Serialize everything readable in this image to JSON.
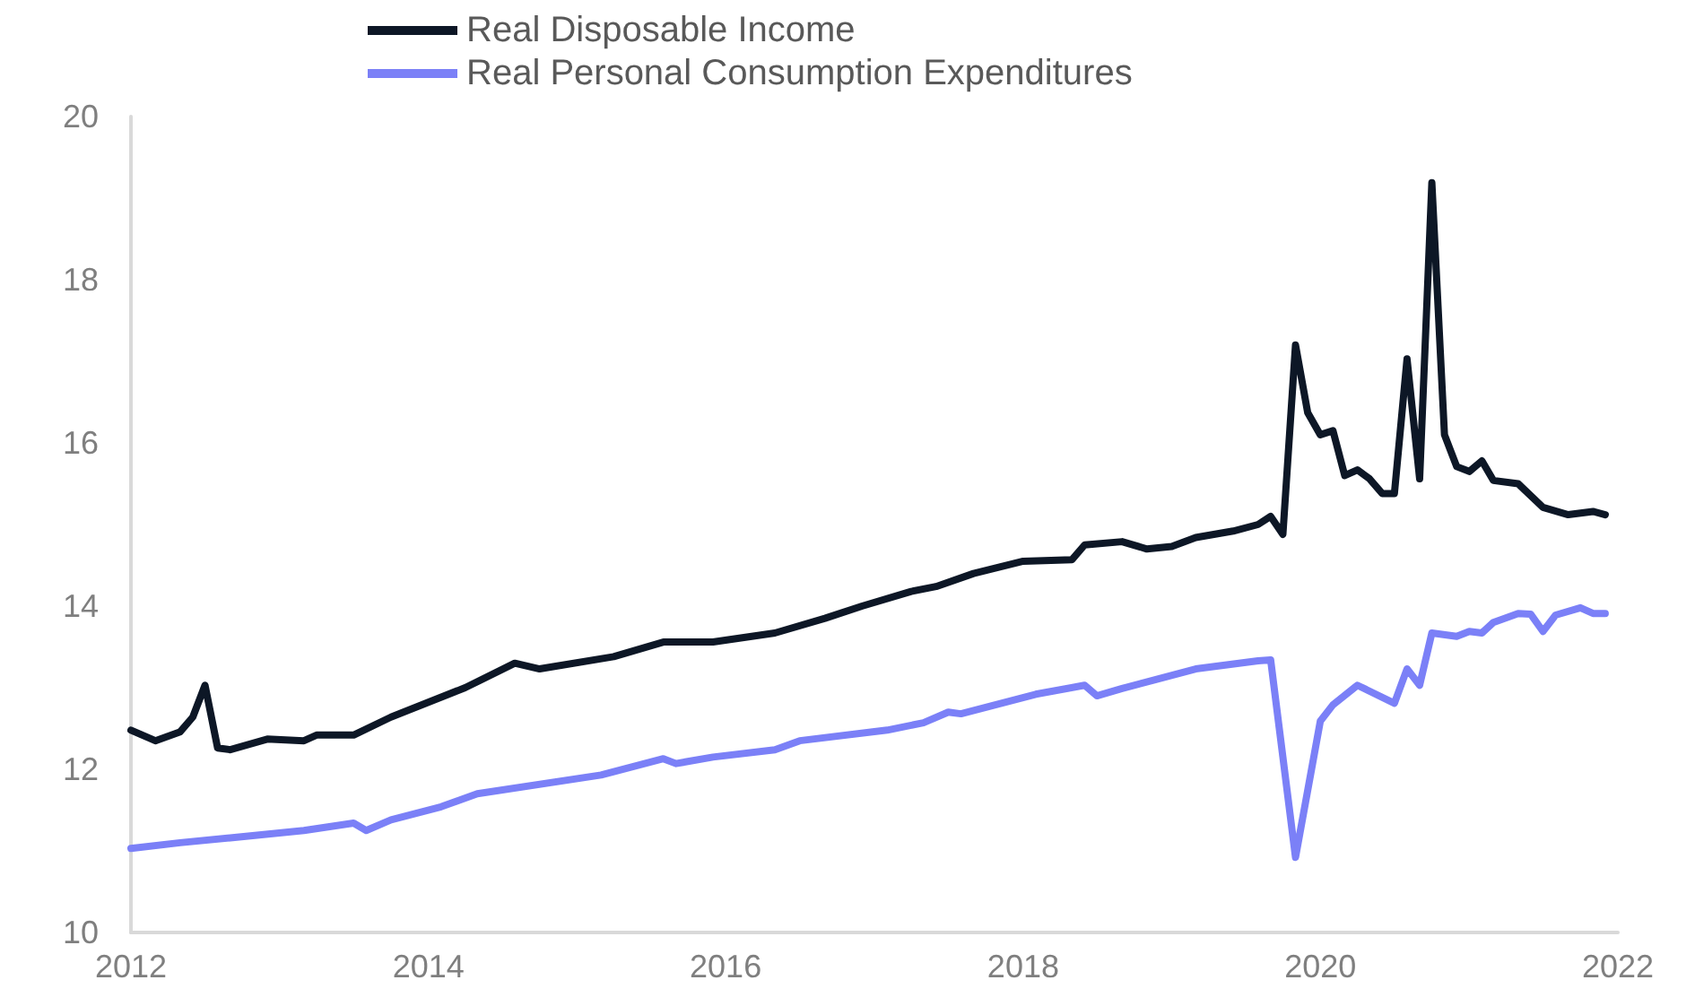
{
  "chart_data": {
    "type": "line",
    "series": [
      {
        "name": "Real Disposable Income",
        "color": "#0d1726",
        "x": [
          "2012-01",
          "2012-03",
          "2012-05",
          "2012-06",
          "2012-07",
          "2012-08",
          "2012-09",
          "2012-12",
          "2013-03",
          "2013-04",
          "2013-07",
          "2013-10",
          "2014-04",
          "2014-08",
          "2014-10",
          "2015-04",
          "2015-08",
          "2015-12",
          "2016-05",
          "2016-09",
          "2016-12",
          "2017-04",
          "2017-06",
          "2017-09",
          "2018-01",
          "2018-05",
          "2018-06",
          "2018-09",
          "2018-11",
          "2019-01",
          "2019-03",
          "2019-06",
          "2019-08",
          "2019-09",
          "2019-10",
          "2019-11",
          "2019-12",
          "2020-01",
          "2020-02",
          "2020-03",
          "2020-04",
          "2020-05",
          "2020-06",
          "2020-07",
          "2020-08",
          "2020-09",
          "2020-10",
          "2020-11",
          "2020-12",
          "2021-01",
          "2021-02",
          "2021-03",
          "2021-05",
          "2021-07",
          "2021-09",
          "2021-11",
          "2021-12"
        ],
        "values": [
          12.48,
          12.35,
          12.46,
          12.64,
          13.03,
          12.26,
          12.24,
          12.37,
          12.35,
          12.42,
          12.42,
          12.64,
          13.0,
          13.3,
          13.23,
          13.38,
          13.56,
          13.56,
          13.67,
          13.85,
          14.0,
          14.18,
          14.24,
          14.4,
          14.55,
          14.57,
          14.75,
          14.79,
          14.7,
          14.73,
          14.84,
          14.92,
          15.0,
          15.1,
          14.88,
          17.2,
          16.37,
          16.1,
          16.15,
          15.6,
          15.67,
          15.56,
          15.38,
          15.38,
          17.03,
          15.56,
          19.19,
          16.1,
          15.71,
          15.65,
          15.78,
          15.54,
          15.5,
          15.21,
          15.12,
          15.16,
          15.12
        ]
      },
      {
        "name": "Real Personal Consumption Expenditures",
        "color": "#7b80f7",
        "x": [
          "2012-01",
          "2012-05",
          "2012-09",
          "2013-03",
          "2013-07",
          "2013-08",
          "2013-10",
          "2014-02",
          "2014-05",
          "2015-03",
          "2015-08",
          "2015-09",
          "2015-12",
          "2016-05",
          "2016-07",
          "2017-02",
          "2017-05",
          "2017-07",
          "2017-08",
          "2018-02",
          "2018-06",
          "2018-07",
          "2018-09",
          "2019-03",
          "2019-08",
          "2019-09",
          "2019-11",
          "2020-01",
          "2020-02",
          "2020-04",
          "2020-07",
          "2020-08",
          "2020-09",
          "2020-10",
          "2020-12",
          "2021-01",
          "2021-02",
          "2021-03",
          "2021-05",
          "2021-06",
          "2021-07",
          "2021-08",
          "2021-10",
          "2021-11",
          "2021-12"
        ],
        "values": [
          11.03,
          11.1,
          11.16,
          11.25,
          11.34,
          11.25,
          11.38,
          11.54,
          11.7,
          11.93,
          12.13,
          12.07,
          12.15,
          12.24,
          12.35,
          12.48,
          12.57,
          12.7,
          12.68,
          12.92,
          13.03,
          12.9,
          12.99,
          13.23,
          13.33,
          13.34,
          10.92,
          12.59,
          12.79,
          13.03,
          12.81,
          13.23,
          13.03,
          13.67,
          13.63,
          13.69,
          13.67,
          13.8,
          13.91,
          13.9,
          13.69,
          13.89,
          13.98,
          13.91,
          13.91
        ]
      }
    ],
    "xlim": [
      "2012-01",
      "2022-01"
    ],
    "xticks": [
      "2012",
      "2014",
      "2016",
      "2018",
      "2020",
      "2022"
    ],
    "ylim": [
      10,
      20
    ],
    "yticks": [
      10,
      12,
      14,
      16,
      18,
      20
    ],
    "grid": false,
    "legend": "top",
    "marker": "none",
    "line_style": "solid"
  }
}
